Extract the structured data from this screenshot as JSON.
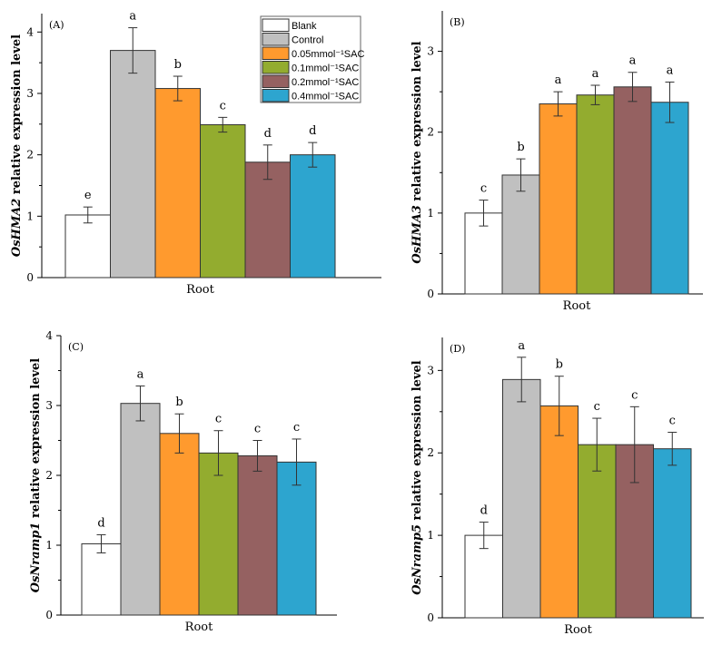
{
  "legend": {
    "entries": [
      "Blank",
      "Control",
      "0.05mmol⁻¹SAC",
      "0.1mmol⁻¹SAC",
      "0.2mmol⁻¹SAC",
      "0.4mmol⁻¹SAC"
    ],
    "colors": [
      "#ffffff",
      "#c0c0c0",
      "#ff9a2e",
      "#93ac2f",
      "#956161",
      "#2da5cf"
    ]
  },
  "chart_data": [
    {
      "type": "bar",
      "panel_label": "(A)",
      "gene": "OsHMA2",
      "ylabel_suffix": " relative expression level",
      "xlabel": "Root",
      "ylim": [
        0,
        4.3
      ],
      "yticks": [
        0,
        1,
        2,
        3,
        4
      ],
      "categories": [
        "Blank",
        "Control",
        "0.05mmol⁻¹SAC",
        "0.1mmol⁻¹SAC",
        "0.2mmol⁻¹SAC",
        "0.4mmol⁻¹SAC"
      ],
      "values": [
        1.02,
        3.7,
        3.08,
        2.49,
        1.88,
        2.0
      ],
      "errors": [
        0.13,
        0.37,
        0.2,
        0.12,
        0.28,
        0.2
      ],
      "letters": [
        "e",
        "a",
        "b",
        "c",
        "d",
        "d"
      ]
    },
    {
      "type": "bar",
      "panel_label": "(B)",
      "gene": "OsHMA3",
      "ylabel_suffix": " relative expression level",
      "xlabel": "Root",
      "ylim": [
        0,
        3.5
      ],
      "yticks": [
        0,
        1,
        2,
        3
      ],
      "categories": [
        "Blank",
        "Control",
        "0.05mmol⁻¹SAC",
        "0.1mmol⁻¹SAC",
        "0.2mmol⁻¹SAC",
        "0.4mmol⁻¹SAC"
      ],
      "values": [
        1.0,
        1.47,
        2.35,
        2.46,
        2.56,
        2.37
      ],
      "errors": [
        0.16,
        0.2,
        0.15,
        0.12,
        0.18,
        0.25
      ],
      "letters": [
        "c",
        "b",
        "a",
        "a",
        "a",
        "a"
      ]
    },
    {
      "type": "bar",
      "panel_label": "(C)",
      "gene": "OsNramp1",
      "ylabel_suffix": " relative expression level",
      "xlabel": "Root",
      "ylim": [
        0,
        4
      ],
      "yticks": [
        0,
        1,
        2,
        3,
        4
      ],
      "categories": [
        "Blank",
        "Control",
        "0.05mmol⁻¹SAC",
        "0.1mmol⁻¹SAC",
        "0.2mmol⁻¹SAC",
        "0.4mmol⁻¹SAC"
      ],
      "values": [
        1.02,
        3.03,
        2.6,
        2.32,
        2.28,
        2.19
      ],
      "errors": [
        0.13,
        0.25,
        0.28,
        0.32,
        0.22,
        0.33
      ],
      "letters": [
        "d",
        "a",
        "b",
        "c",
        "c",
        "c"
      ]
    },
    {
      "type": "bar",
      "panel_label": "(D)",
      "gene": "OsNramp5",
      "ylabel_suffix": " relative expression level",
      "xlabel": "Root",
      "ylim": [
        0,
        3.4
      ],
      "yticks": [
        0,
        1,
        2,
        3
      ],
      "categories": [
        "Blank",
        "Control",
        "0.05mmol⁻¹SAC",
        "0.1mmol⁻¹SAC",
        "0.2mmol⁻¹SAC",
        "0.4mmol⁻¹SAC"
      ],
      "values": [
        1.0,
        2.89,
        2.57,
        2.1,
        2.1,
        2.05
      ],
      "errors": [
        0.16,
        0.27,
        0.36,
        0.32,
        0.46,
        0.2
      ],
      "letters": [
        "d",
        "a",
        "b",
        "c",
        "c",
        "c"
      ]
    }
  ]
}
